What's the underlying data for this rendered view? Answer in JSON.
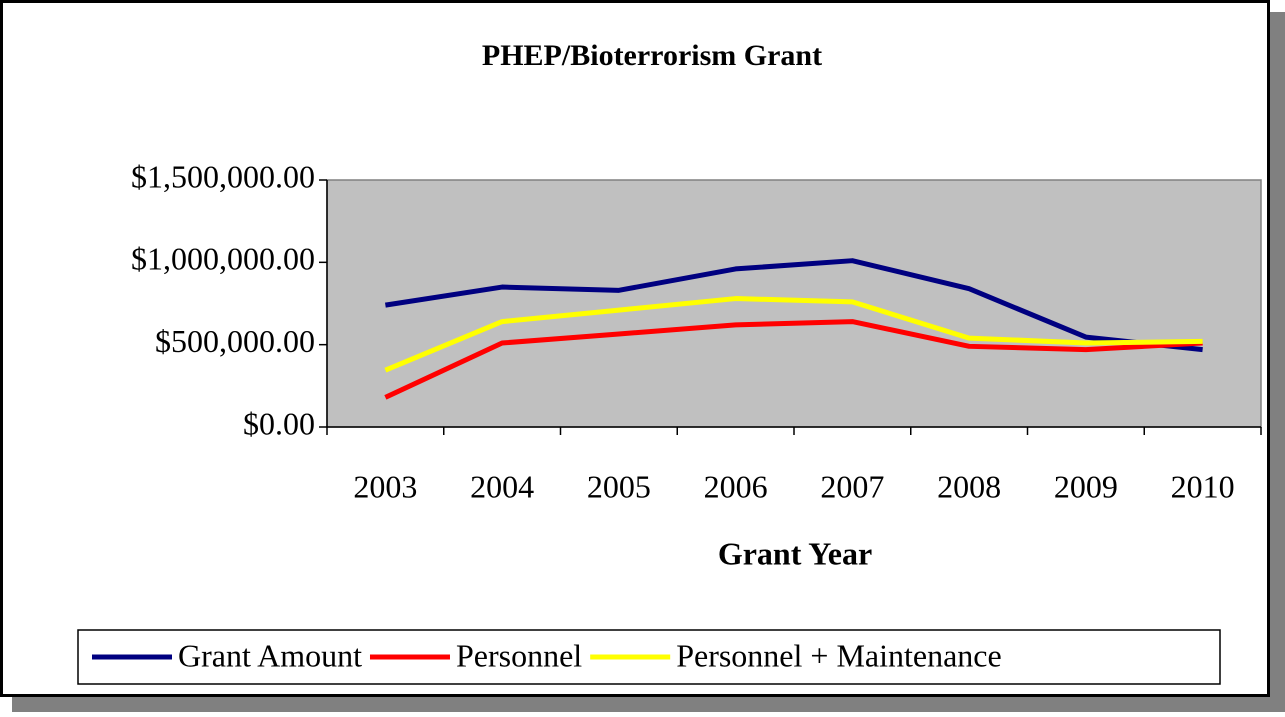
{
  "chart_data": {
    "type": "line",
    "title": "PHEP/Bioterrorism Grant",
    "x_label": "Grant Year",
    "categories": [
      "2003",
      "2004",
      "2005",
      "2006",
      "2007",
      "2008",
      "2009",
      "2010"
    ],
    "series": [
      {
        "name": "Grant Amount",
        "color": "#000080",
        "values": [
          740000,
          850000,
          830000,
          960000,
          1010000,
          840000,
          546000,
          470000
        ]
      },
      {
        "name": "Personnel",
        "color": "#ff0000",
        "values": [
          180000,
          510000,
          565000,
          620000,
          640000,
          490000,
          470000,
          510000
        ]
      },
      {
        "name": "Personnel + Maintenance",
        "color": "#ffff00",
        "values": [
          345000,
          640000,
          710000,
          780000,
          760000,
          540000,
          510000,
          520000
        ]
      }
    ],
    "ylim": [
      0,
      1500000
    ],
    "yticks": [
      {
        "value": 0,
        "label": "$0.00"
      },
      {
        "value": 500000,
        "label": "$500,000.00"
      },
      {
        "value": 1000000,
        "label": "$1,000,000.00"
      },
      {
        "value": 1500000,
        "label": "$1,500,000.00"
      }
    ],
    "plot_background": "#c0c0c0",
    "grid": false,
    "legend": "bottom"
  }
}
